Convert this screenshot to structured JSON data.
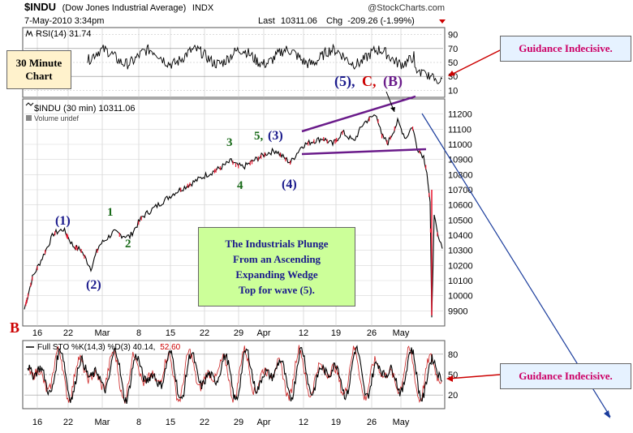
{
  "header": {
    "symbol": "$INDU",
    "name": "(Dow Jones Industrial Average)",
    "exchange": "INDX",
    "datetime": "7-May-2010 3:34pm",
    "last_label": "Last",
    "last": "10311.06",
    "chg_label": "Chg",
    "chg": "-209.26 (-1.99%)",
    "brand": "@StockCharts.com"
  },
  "panels": {
    "rsi_label": "RSI(14) 31.74",
    "price_label": "$INDU (30 min) 10311.06",
    "volume_label": "Volume undef",
    "sto_label": "Full STO %K(14,3) %D(3) 40.14,",
    "sto_value2": "52.60"
  },
  "annotations": {
    "chart_type_box": [
      "30 Minute",
      "Chart"
    ],
    "guidance_top": "Guidance Indecisive.",
    "guidance_bottom": "Guidance Indecisive.",
    "center_box": [
      "The Industrials Plunge",
      "From an Ascending",
      "Expanding Wedge",
      "Top for wave (5)."
    ],
    "wave_top_5": "(5),",
    "wave_top_c": "C,",
    "wave_top_b": "(B)",
    "wave_labels": [
      "B",
      "(1)",
      "(2)",
      "1",
      "2",
      "3",
      "4",
      "5,",
      "(3)",
      "(4)"
    ]
  },
  "colors": {
    "price_line": "#000000",
    "down_tick": "#e8162e",
    "wedge": "#6a1b8a",
    "navy_label": "#1a1a8c",
    "green_label": "#1a6b1a",
    "red_label": "#cc0000",
    "callout_bg": "#ccff99",
    "box_bg": "#fff2cc",
    "guidance_bg": "#e6f2ff",
    "guidance_text": "#cc0066",
    "arrow": "#1a3c9c"
  },
  "chart_data": [
    {
      "type": "line",
      "title": "$INDU (30 min)",
      "x_labels": [
        "16",
        "22",
        "Mar",
        "8",
        "15",
        "22",
        "29",
        "Apr",
        "12",
        "19",
        "26",
        "May"
      ],
      "ylim": [
        9800,
        11300
      ],
      "y_ticks": [
        9900,
        10000,
        10100,
        10200,
        10300,
        10400,
        10500,
        10600,
        10700,
        10800,
        10900,
        11000,
        11100,
        11200
      ],
      "price_keypoints": [
        {
          "label": "B",
          "value": 9910
        },
        {
          "label": "(1)",
          "value": 10440
        },
        {
          "label": "(2)",
          "value": 10180
        },
        {
          "label": "1",
          "value": 10420
        },
        {
          "label": "2",
          "value": 10390
        },
        {
          "label": "3",
          "value": 10890
        },
        {
          "label": "4",
          "value": 10850
        },
        {
          "label": "(3)",
          "value": 10960
        },
        {
          "label": "(4)",
          "value": 10880
        },
        {
          "label": "(5)",
          "value": 11200
        },
        {
          "label": "(B)",
          "value": 11150
        },
        {
          "value": 9870
        },
        {
          "value": 10311
        }
      ],
      "last": 10311.06
    },
    {
      "type": "line",
      "title": "RSI(14)",
      "value": 31.74,
      "y_ticks": [
        10,
        30,
        50,
        70,
        90
      ],
      "ylim": [
        0,
        100
      ]
    },
    {
      "type": "line",
      "title": "Full STO %K(14,3) %D(3)",
      "values": [
        40.14,
        52.6
      ],
      "y_ticks": [
        20,
        50,
        80
      ],
      "ylim": [
        0,
        100
      ]
    }
  ]
}
